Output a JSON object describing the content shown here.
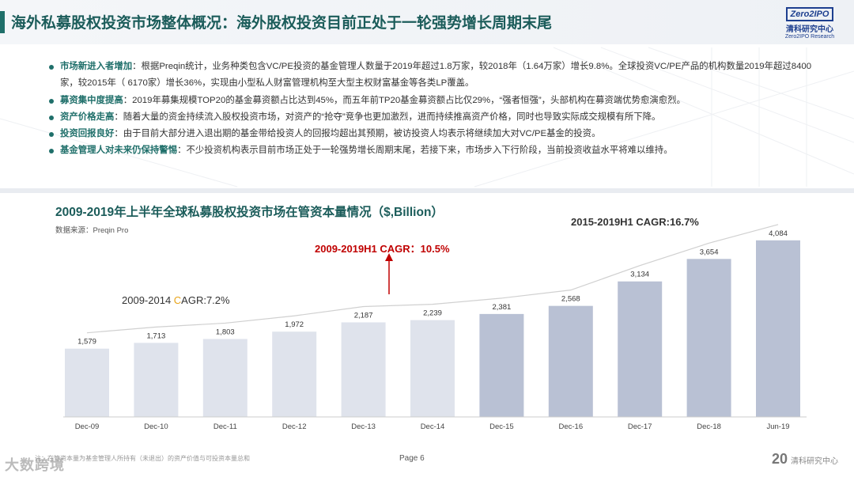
{
  "header": {
    "title": "海外私募股权投资市场整体概况：海外股权投资目前正处于一轮强势增长周期末尾",
    "logo_text": "Zero2IPO",
    "logo_cn": "清科研究中心",
    "logo_en": "Zero2IPO Research"
  },
  "bullets": [
    {
      "key": "市场新进入者增加",
      "text": "：根据Preqin统计，业务种类包含VC/PE投资的基金管理人数量于2019年超过1.8万家，较2018年（1.64万家）增长9.8%。全球投资VC/PE产品的机构数量2019年超过8400家，较2015年（ 6170家）增长36%，实现由小型私人财富管理机构至大型主权财富基金等各类LP覆盖。"
    },
    {
      "key": "募资集中度提高",
      "text": "：2019年募集规模TOP20的基金募资额占比达到45%，而五年前TP20基金募资额占比仅29%，“强者恒强”，头部机构在募资端优势愈演愈烈。"
    },
    {
      "key": "资产价格走高",
      "text": "：随着大量的资金持续流入股权投资市场，对资产的“抢夺”竞争也更加激烈，进而持续推高资产价格，同时也导致实际成交规模有所下降。"
    },
    {
      "key": "投资回报良好",
      "text": "：由于目前大部分进入退出期的基金带给投资人的回报均超出其预期，被访投资人均表示将继续加大对VC/PE基金的投资。"
    },
    {
      "key": "基金管理人对未来仍保持警惕",
      "text": "：不少投资机构表示目前市场正处于一轮强势增长周期末尾，若接下来，市场步入下行阶段，当前投资收益水平将难以维持。"
    }
  ],
  "chart_data": {
    "type": "bar",
    "title": "2009-2019年上半年全球私募股权投资市场在管资本量情况（$,Billion）",
    "source": "数据来源：Preqin Pro",
    "categories": [
      "Dec-09",
      "Dec-10",
      "Dec-11",
      "Dec-12",
      "Dec-13",
      "Dec-14",
      "Dec-15",
      "Dec-16",
      "Dec-17",
      "Dec-18",
      "Jun-19"
    ],
    "values": [
      1579,
      1713,
      1803,
      1972,
      2187,
      2239,
      2381,
      2568,
      3134,
      3654,
      4084
    ],
    "value_labels": [
      "1,579",
      "1,713",
      "1,803",
      "1,972",
      "2,187",
      "2,239",
      "2,381",
      "2,568",
      "3,134",
      "3,654",
      "4,084"
    ],
    "ylim": [
      0,
      4300
    ],
    "colors": {
      "early": "#dfe3ec",
      "late": "#b9c1d4",
      "label": "#333333",
      "trend": "#d0d0d0"
    },
    "annotations": {
      "cagr_total": "2009-2019H1 CAGR：10.5%",
      "cagr_early_prefix": "2009-2014 ",
      "cagr_early_c": "C",
      "cagr_early_suffix": "AGR:7.2%",
      "cagr_late": "2015-2019H1 CAGR:16.7%"
    }
  },
  "footer": {
    "note": "注：在管资本量为基金管理人所持有（未退出）的资产价值与可投资本量总和",
    "watermark": "大数跨境",
    "page": "Page  6",
    "logo_big": "20",
    "logo_text": "清科研究中心"
  }
}
